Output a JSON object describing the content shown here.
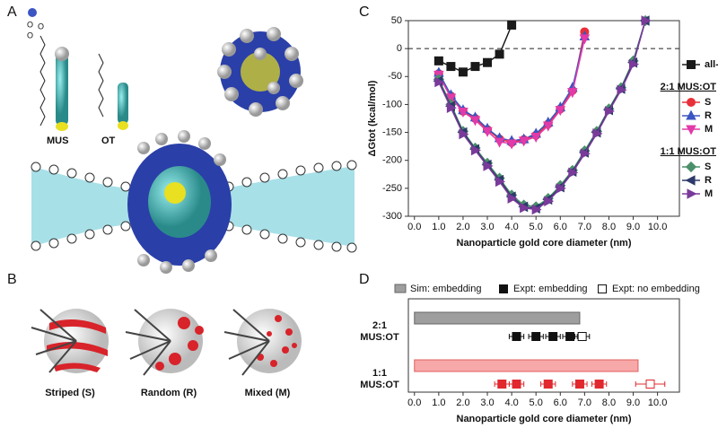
{
  "panel_labels": [
    "A",
    "B",
    "C",
    "D"
  ],
  "panel_a": {
    "labels": [
      "MUS",
      "OT"
    ]
  },
  "panel_b": {
    "labels": [
      "Striped (S)",
      "Random (R)",
      "Mixed (M)"
    ]
  },
  "chart_data": [
    {
      "type": "line",
      "x_label": "Nanoparticle gold core diameter (nm)",
      "y_label": "ΔGtot (kcal/mol)",
      "xlim": [
        -0.25,
        10.9
      ],
      "ylim": [
        -300,
        50
      ],
      "xticks": [
        {
          "value": 0,
          "label": "0.0"
        },
        {
          "value": 1,
          "label": "1.0"
        },
        {
          "value": 2,
          "label": "2.0"
        },
        {
          "value": 3,
          "label": "3.0"
        },
        {
          "value": 4,
          "label": "4.0"
        },
        {
          "value": 5,
          "label": "5.0"
        },
        {
          "value": 6,
          "label": "6.0"
        },
        {
          "value": 7,
          "label": "7.0"
        },
        {
          "value": 8,
          "label": "8.0"
        },
        {
          "value": 9,
          "label": "9.0"
        },
        {
          "value": 10,
          "label": "10.0"
        }
      ],
      "yticks": [
        -300,
        -250,
        -200,
        -150,
        -100,
        -50,
        0,
        50
      ],
      "reference_line": 0,
      "series": [
        {
          "name": "all-MUS",
          "color": "#1a1a1a",
          "marker": "square",
          "x": [
            1,
            1.5,
            2,
            2.5,
            3,
            3.5,
            4
          ],
          "values": [
            -22,
            -32,
            -42,
            -32,
            -25,
            -10,
            42
          ]
        },
        {
          "name": "S",
          "group": "2:1 MUS:OT",
          "color": "#e8303a",
          "marker": "circle",
          "x": [
            1,
            1.5,
            2,
            2.5,
            3,
            3.5,
            4,
            4.5,
            5,
            5.5,
            6,
            6.5,
            7
          ],
          "values": [
            -45,
            -85,
            -112,
            -125,
            -145,
            -162,
            -168,
            -163,
            -155,
            -135,
            -108,
            -75,
            30
          ]
        },
        {
          "name": "R",
          "group": "2:1 MUS:OT",
          "color": "#3b55c2",
          "marker": "triangle-up",
          "x": [
            1,
            1.5,
            2,
            2.5,
            3,
            3.5,
            4,
            4.5,
            5,
            5.5,
            6,
            6.5,
            7
          ],
          "values": [
            -43,
            -83,
            -110,
            -123,
            -143,
            -160,
            -165,
            -162,
            -152,
            -132,
            -105,
            -70,
            22
          ]
        },
        {
          "name": "M",
          "group": "2:1 MUS:OT",
          "color": "#e23aa8",
          "marker": "triangle-down",
          "x": [
            1,
            1.5,
            2,
            2.5,
            3,
            3.5,
            4,
            4.5,
            5,
            5.5,
            6,
            6.5,
            7
          ],
          "values": [
            -47,
            -88,
            -113,
            -128,
            -148,
            -167,
            -170,
            -165,
            -158,
            -138,
            -110,
            -78,
            18
          ]
        },
        {
          "name": "S",
          "group": "1:1 MUS:OT",
          "color": "#4a8f6a",
          "marker": "diamond",
          "x": [
            1,
            1.5,
            2,
            2.5,
            3,
            3.5,
            4,
            4.5,
            5,
            5.5,
            6,
            6.5,
            7,
            7.5,
            8,
            8.5,
            9,
            9.5
          ],
          "values": [
            -55,
            -100,
            -148,
            -178,
            -205,
            -232,
            -262,
            -280,
            -283,
            -268,
            -245,
            -218,
            -183,
            -148,
            -108,
            -70,
            -22,
            50
          ]
        },
        {
          "name": "R",
          "group": "1:1 MUS:OT",
          "color": "#2d3a6b",
          "marker": "triangle-left",
          "x": [
            1,
            1.5,
            2,
            2.5,
            3,
            3.5,
            4,
            4.5,
            5,
            5.5,
            6,
            6.5,
            7,
            7.5,
            8,
            8.5,
            9,
            9.5
          ],
          "values": [
            -58,
            -103,
            -150,
            -180,
            -208,
            -235,
            -265,
            -283,
            -286,
            -270,
            -248,
            -220,
            -186,
            -150,
            -110,
            -72,
            -25,
            50
          ]
        },
        {
          "name": "M",
          "group": "1:1 MUS:OT",
          "color": "#7a3a9a",
          "marker": "triangle-right",
          "x": [
            1,
            1.5,
            2,
            2.5,
            3,
            3.5,
            4,
            4.5,
            5,
            5.5,
            6,
            6.5,
            7,
            7.5,
            8,
            8.5,
            9,
            9.5
          ],
          "values": [
            -60,
            -106,
            -153,
            -182,
            -210,
            -238,
            -268,
            -285,
            -288,
            -273,
            -250,
            -222,
            -188,
            -152,
            -112,
            -74,
            -28,
            50
          ]
        }
      ]
    },
    {
      "type": "dot_bar",
      "x_label": "Nanoparticle gold core diameter (nm)",
      "xlim": [
        -0.25,
        10.9
      ],
      "xticks": [
        {
          "value": 0,
          "label": "0.0"
        },
        {
          "value": 1,
          "label": "1.0"
        },
        {
          "value": 2,
          "label": "2.0"
        },
        {
          "value": 3,
          "label": "3.0"
        },
        {
          "value": 4,
          "label": "4.0"
        },
        {
          "value": 5,
          "label": "5.0"
        },
        {
          "value": 6,
          "label": "6.0"
        },
        {
          "value": 7,
          "label": "7.0"
        },
        {
          "value": 8,
          "label": "8.0"
        },
        {
          "value": 9,
          "label": "9.0"
        },
        {
          "value": 10,
          "label": "10.0"
        }
      ],
      "categories": [
        "2:1 MUS:OT",
        "1:1 MUS:OT"
      ],
      "series": [
        {
          "name": "Sim: embedding",
          "kind": "bar",
          "colors": [
            "#9e9e9e",
            "#f7a8a8"
          ],
          "legend_color": "#9e9e9e",
          "values": [
            6.8,
            9.2
          ]
        },
        {
          "name": "Expt: embedding",
          "kind": "filled",
          "colors": [
            "#111111",
            "#e0282e"
          ],
          "legend_color": "#111111",
          "values": [
            [
              4.2,
              5.0,
              5.7,
              6.4
            ],
            [
              3.6,
              4.2,
              5.5,
              6.8,
              7.6
            ]
          ],
          "errors": [
            [
              0.3,
              0.3,
              0.3,
              0.3
            ],
            [
              0.3,
              0.3,
              0.3,
              0.3,
              0.3
            ]
          ]
        },
        {
          "name": "Expt: no embedding",
          "kind": "open",
          "colors": [
            "#111111",
            "#e0282e"
          ],
          "legend_color": "#111111",
          "values": [
            [
              6.9
            ],
            [
              9.7
            ]
          ],
          "errors": [
            [
              0.3
            ],
            [
              0.6
            ]
          ]
        }
      ]
    }
  ]
}
